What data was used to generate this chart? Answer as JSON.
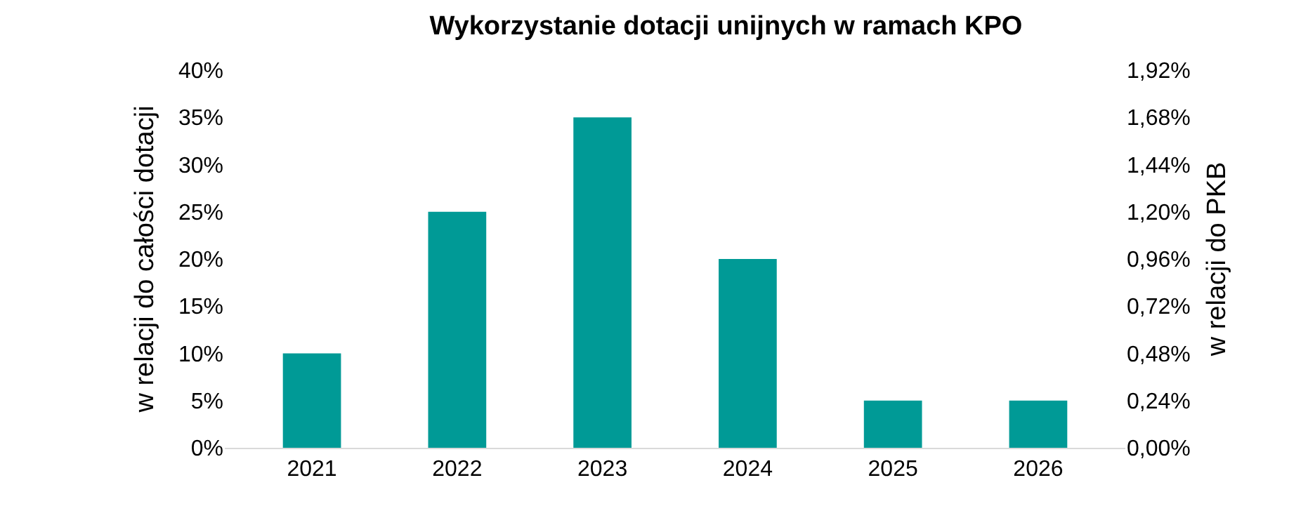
{
  "chart_data": {
    "type": "bar",
    "title": "Wykorzystanie dotacji unijnych w ramach KPO",
    "categories": [
      "2021",
      "2022",
      "2023",
      "2024",
      "2025",
      "2026"
    ],
    "values": [
      10,
      25,
      35,
      20,
      5,
      5
    ],
    "color": "#009a96",
    "ylabel": "w relacji do całości dotacji",
    "y2label": "w relacji do PKB",
    "ylim": [
      0,
      40
    ],
    "yticks": [
      {
        "value": 0,
        "label": "0%"
      },
      {
        "value": 5,
        "label": "5%"
      },
      {
        "value": 10,
        "label": "10%"
      },
      {
        "value": 15,
        "label": "15%"
      },
      {
        "value": 20,
        "label": "20%"
      },
      {
        "value": 25,
        "label": "25%"
      },
      {
        "value": 30,
        "label": "30%"
      },
      {
        "value": 35,
        "label": "35%"
      },
      {
        "value": 40,
        "label": "40%"
      }
    ],
    "y2lim": [
      0,
      1.92
    ],
    "y2ticks": [
      {
        "value": 0,
        "label": "0,00%"
      },
      {
        "value": 0.24,
        "label": "0,24%"
      },
      {
        "value": 0.48,
        "label": "0,48%"
      },
      {
        "value": 0.72,
        "label": "0,72%"
      },
      {
        "value": 0.96,
        "label": "0,96%"
      },
      {
        "value": 1.2,
        "label": "1,20%"
      },
      {
        "value": 1.44,
        "label": "1,44%"
      },
      {
        "value": 1.68,
        "label": "1,68%"
      },
      {
        "value": 1.92,
        "label": "1,92%"
      }
    ],
    "legend": false
  }
}
